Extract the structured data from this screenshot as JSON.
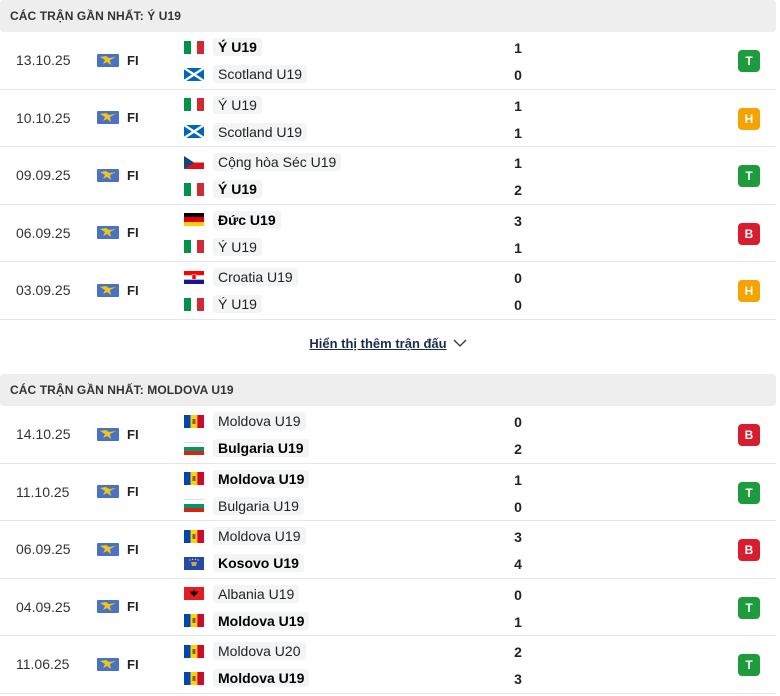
{
  "sections": [
    {
      "title": "CÁC TRẬN GẦN NHẤT: Ý U19",
      "matches": [
        {
          "date": "13.10.25",
          "league": "FI",
          "home": {
            "name": "Ý U19",
            "flag": "italy",
            "winner": true
          },
          "away": {
            "name": "Scotland U19",
            "flag": "scotland",
            "winner": false
          },
          "home_score": "1",
          "away_score": "0",
          "result": "T",
          "result_type": "win"
        },
        {
          "date": "10.10.25",
          "league": "FI",
          "home": {
            "name": "Ý U19",
            "flag": "italy",
            "winner": false
          },
          "away": {
            "name": "Scotland U19",
            "flag": "scotland",
            "winner": false
          },
          "home_score": "1",
          "away_score": "1",
          "result": "H",
          "result_type": "draw"
        },
        {
          "date": "09.09.25",
          "league": "FI",
          "home": {
            "name": "Cộng hòa Séc U19",
            "flag": "czech",
            "winner": false
          },
          "away": {
            "name": "Ý U19",
            "flag": "italy",
            "winner": true
          },
          "home_score": "1",
          "away_score": "2",
          "result": "T",
          "result_type": "win"
        },
        {
          "date": "06.09.25",
          "league": "FI",
          "home": {
            "name": "Đức U19",
            "flag": "germany",
            "winner": true
          },
          "away": {
            "name": "Ý U19",
            "flag": "italy",
            "winner": false
          },
          "home_score": "3",
          "away_score": "1",
          "result": "B",
          "result_type": "loss"
        },
        {
          "date": "03.09.25",
          "league": "FI",
          "home": {
            "name": "Croatia U19",
            "flag": "croatia",
            "winner": false
          },
          "away": {
            "name": "Ý U19",
            "flag": "italy",
            "winner": false
          },
          "home_score": "0",
          "away_score": "0",
          "result": "H",
          "result_type": "draw"
        }
      ]
    },
    {
      "title": "CÁC TRẬN GẦN NHẤT: MOLDOVA U19",
      "matches": [
        {
          "date": "14.10.25",
          "league": "FI",
          "home": {
            "name": "Moldova U19",
            "flag": "moldova",
            "winner": false
          },
          "away": {
            "name": "Bulgaria U19",
            "flag": "bulgaria",
            "winner": true
          },
          "home_score": "0",
          "away_score": "2",
          "result": "B",
          "result_type": "loss"
        },
        {
          "date": "11.10.25",
          "league": "FI",
          "home": {
            "name": "Moldova U19",
            "flag": "moldova",
            "winner": true
          },
          "away": {
            "name": "Bulgaria U19",
            "flag": "bulgaria",
            "winner": false
          },
          "home_score": "1",
          "away_score": "0",
          "result": "T",
          "result_type": "win"
        },
        {
          "date": "06.09.25",
          "league": "FI",
          "home": {
            "name": "Moldova U19",
            "flag": "moldova",
            "winner": false
          },
          "away": {
            "name": "Kosovo U19",
            "flag": "kosovo",
            "winner": true
          },
          "home_score": "3",
          "away_score": "4",
          "result": "B",
          "result_type": "loss"
        },
        {
          "date": "04.09.25",
          "league": "FI",
          "home": {
            "name": "Albania U19",
            "flag": "albania",
            "winner": false
          },
          "away": {
            "name": "Moldova U19",
            "flag": "moldova",
            "winner": true
          },
          "home_score": "0",
          "away_score": "1",
          "result": "T",
          "result_type": "win"
        },
        {
          "date": "11.06.25",
          "league": "FI",
          "home": {
            "name": "Moldova U20",
            "flag": "moldova",
            "winner": false
          },
          "away": {
            "name": "Moldova U19",
            "flag": "moldova",
            "winner": true
          },
          "home_score": "2",
          "away_score": "3",
          "result": "T",
          "result_type": "win"
        }
      ]
    }
  ],
  "show_more": {
    "label": "Hiển thị thêm trận đấu",
    "icon": "chevron-down-icon"
  },
  "colors": {
    "win": "#1e9b3a",
    "draw": "#f5a300",
    "loss": "#d81e2c",
    "header_bg": "#eeeeee"
  }
}
